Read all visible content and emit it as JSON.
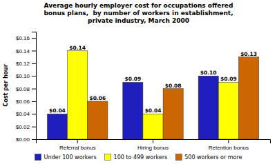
{
  "chart_data": {
    "type": "bar",
    "title": "Average hourly employer cost for occupations offered\nbonus plans,  by number of workers in establishment,\nprivate industry, March 2000",
    "ylabel": "Cost per hour",
    "categories": [
      "Referral bonus",
      "Hiring bonus",
      "Retention bonus"
    ],
    "series": [
      {
        "name": "Under 100 workers",
        "color": "#1f1fbf",
        "values": [
          0.04,
          0.09,
          0.1
        ],
        "value_labels": [
          "$0.04",
          "$0.09",
          "$0.10"
        ]
      },
      {
        "name": "100 to 499 workers",
        "color": "#ffff00",
        "values": [
          0.14,
          0.04,
          0.09
        ],
        "value_labels": [
          "$0.14",
          "$0.04",
          "$0.09"
        ]
      },
      {
        "name": "500 workers or more",
        "color": "#cc6600",
        "values": [
          0.06,
          0.08,
          0.13
        ],
        "value_labels": [
          "$0.06",
          "$0.08",
          "$0.13"
        ]
      }
    ],
    "ylim": [
      0,
      0.17
    ],
    "yticks": [
      {
        "value": 0.0,
        "label": "$0.00"
      },
      {
        "value": 0.02,
        "label": "$0.02"
      },
      {
        "value": 0.04,
        "label": "$0.04"
      },
      {
        "value": 0.06,
        "label": "$0.06"
      },
      {
        "value": 0.08,
        "label": "$0.08"
      },
      {
        "value": 0.1,
        "label": "$0.10"
      },
      {
        "value": 0.12,
        "label": "$0.12"
      },
      {
        "value": 0.14,
        "label": "$0.14"
      },
      {
        "value": 0.16,
        "label": "$0.16"
      }
    ],
    "data_labels": true,
    "legend": "bottom",
    "grid": false
  }
}
